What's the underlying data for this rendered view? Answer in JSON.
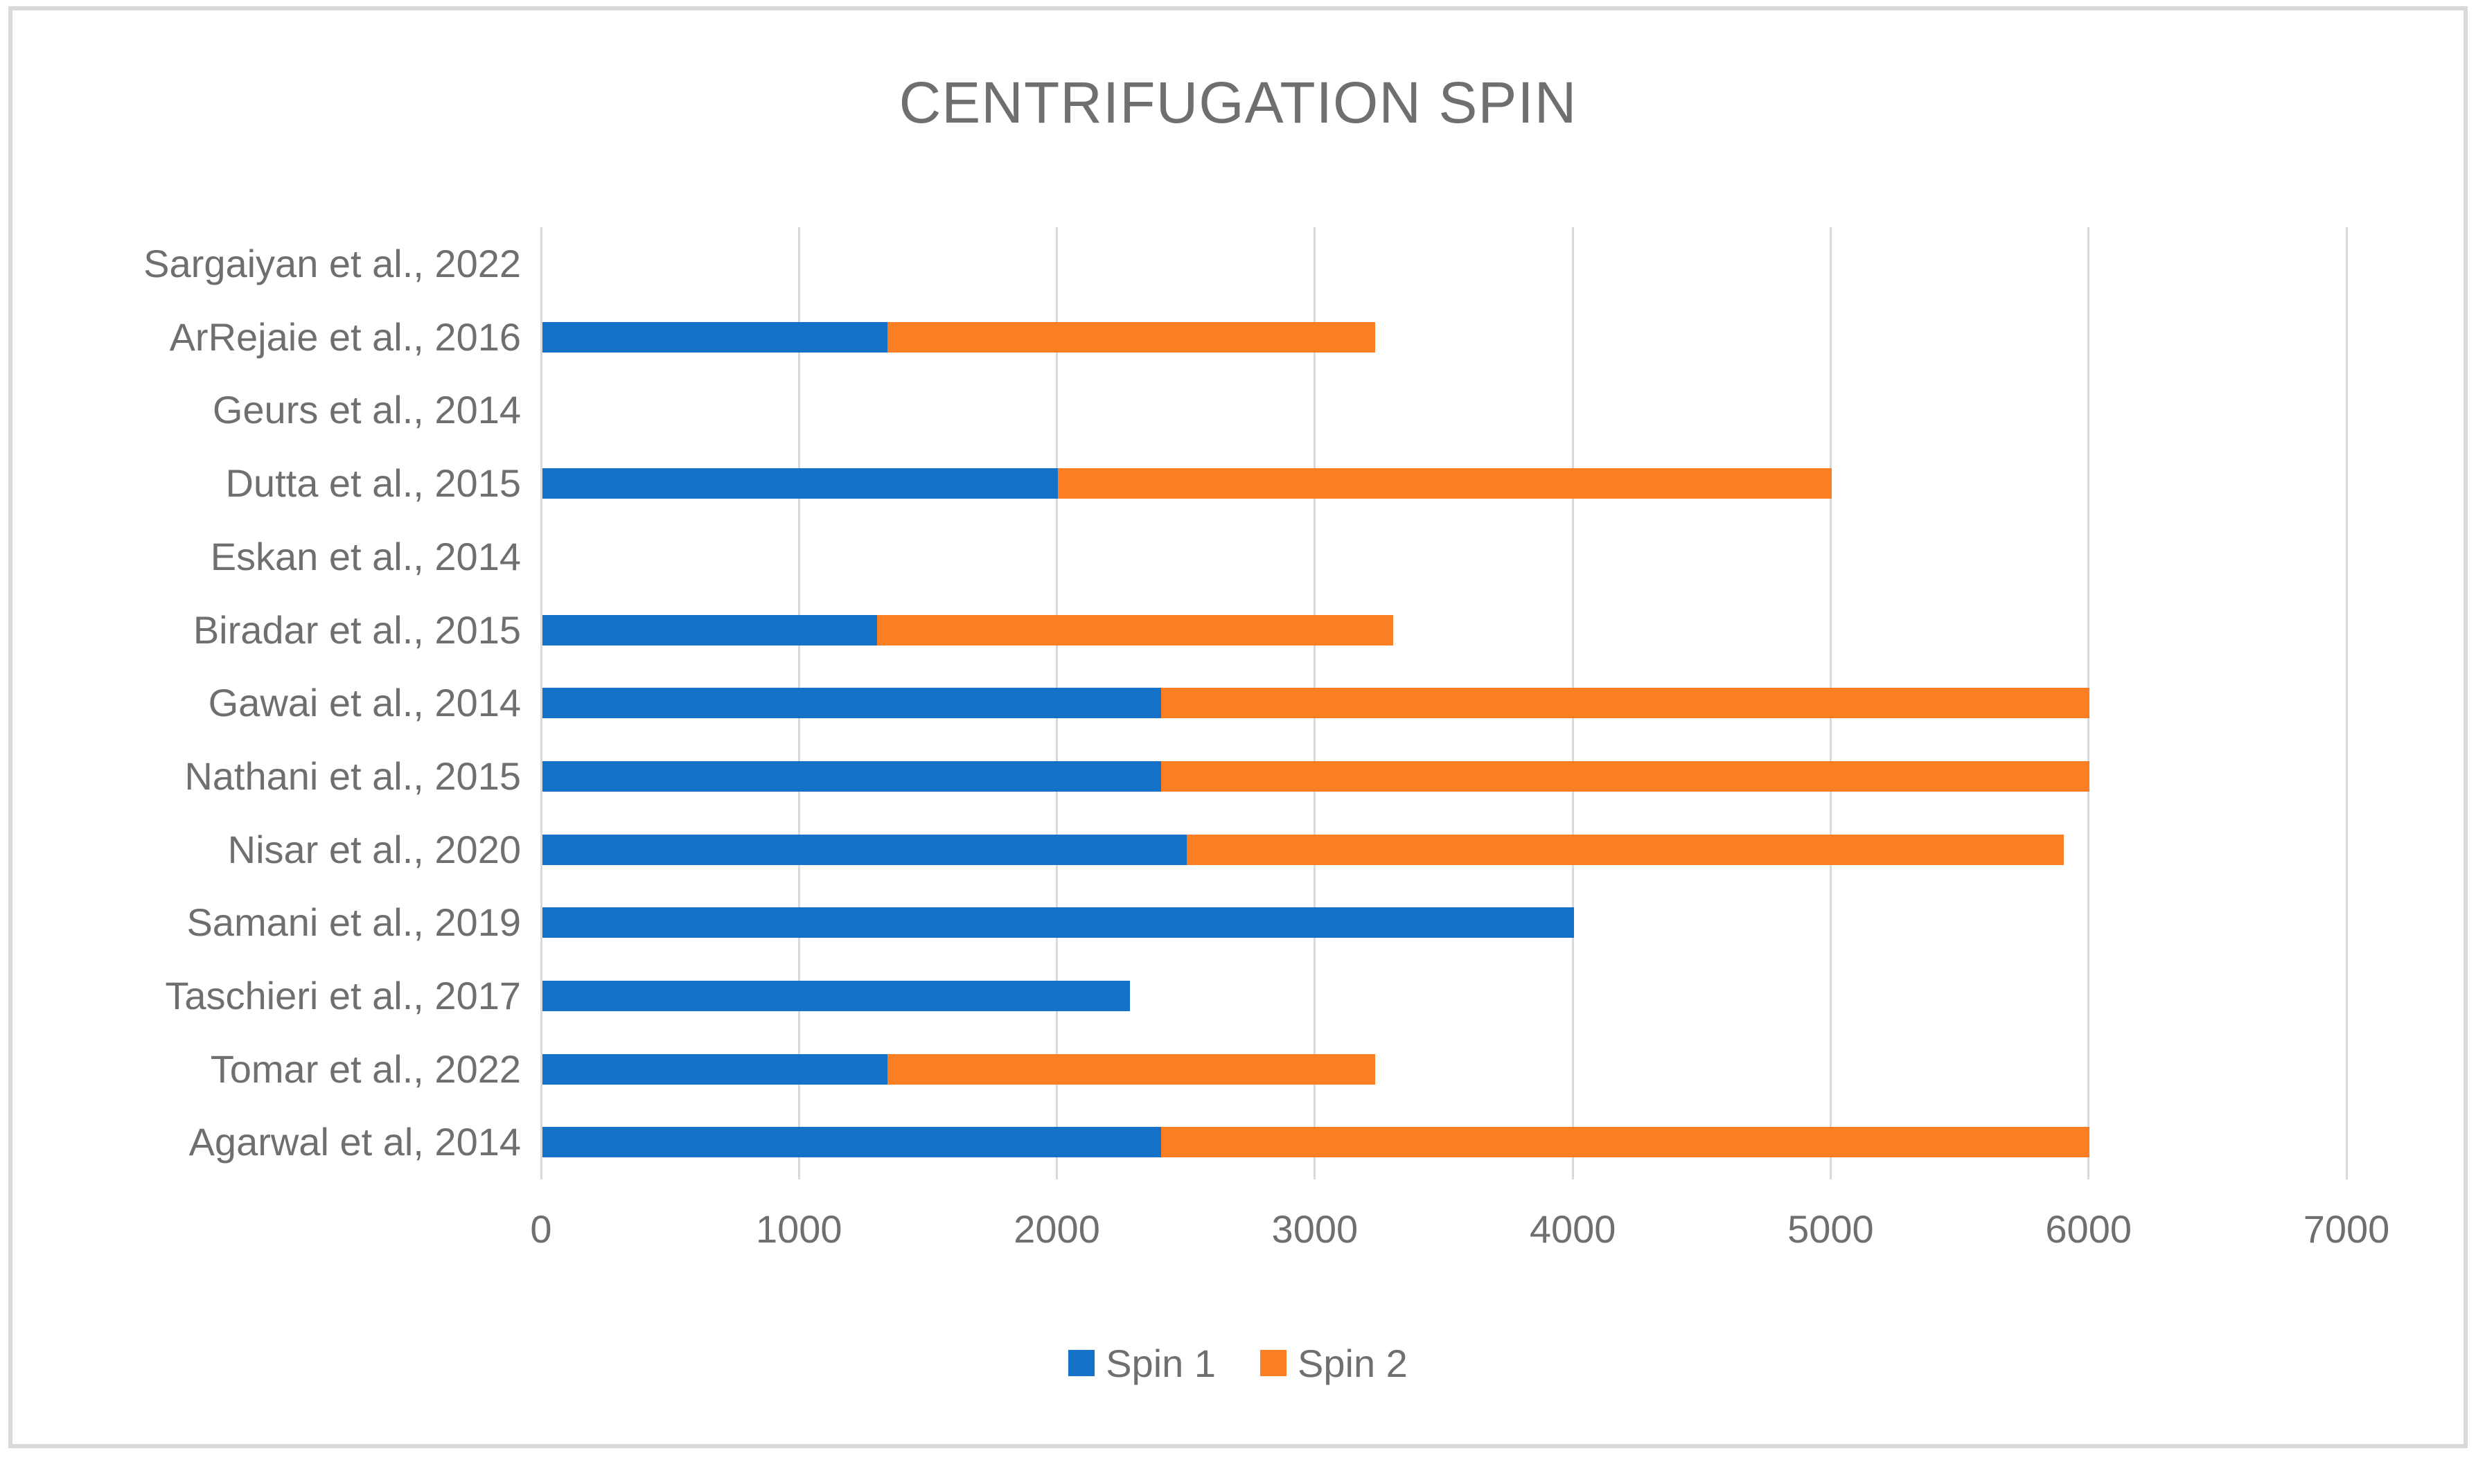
{
  "chart_data": {
    "type": "bar",
    "orientation": "horizontal",
    "stacked": true,
    "title": "CENTRIFUGATION SPIN",
    "categories": [
      "Sargaiyan et al., 2022",
      "ArRejaie et al., 2016",
      "Geurs et al., 2014",
      "Dutta et al., 2015",
      "Eskan et al., 2014",
      "Biradar et al., 2015",
      "Gawai et al., 2014",
      "Nathani et al., 2015",
      "Nisar et al., 2020",
      "Samani et al., 2019",
      "Taschieri et al., 2017",
      "Tomar et al., 2022",
      "Agarwal et al, 2014"
    ],
    "series": [
      {
        "name": "Spin 1",
        "color": "#1572C8",
        "values": [
          0,
          1340,
          0,
          2000,
          0,
          1300,
          2400,
          2400,
          2500,
          4000,
          2280,
          1340,
          2400
        ]
      },
      {
        "name": "Spin 2",
        "color": "#FC7E23",
        "values": [
          0,
          1890,
          0,
          3000,
          0,
          2000,
          3600,
          3600,
          3400,
          0,
          0,
          1890,
          3600
        ]
      }
    ],
    "xlim": [
      0,
      7000
    ],
    "x_ticks": [
      "0",
      "1000",
      "2000",
      "3000",
      "4000",
      "5000",
      "6000",
      "7000"
    ],
    "grid": "vertical",
    "legend_position": "bottom",
    "colors": {
      "grid_color": "#D9D9D9",
      "frame_border_color": "#D9D9D9",
      "text_color": "#6F6F6F",
      "background": "#FFFFFF"
    }
  }
}
